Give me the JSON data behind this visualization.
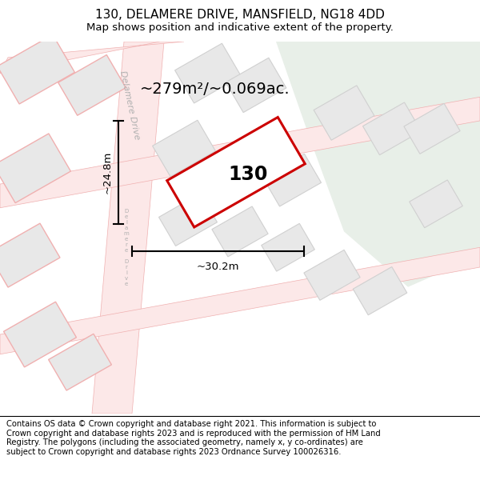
{
  "title": "130, DELAMERE DRIVE, MANSFIELD, NG18 4DD",
  "subtitle": "Map shows position and indicative extent of the property.",
  "area_text": "~279m²/~0.069ac.",
  "label_130": "130",
  "dim_width": "~30.2m",
  "dim_height": "~24.8m",
  "footer": "Contains OS data © Crown copyright and database right 2021. This information is subject to Crown copyright and database rights 2023 and is reproduced with the permission of HM Land Registry. The polygons (including the associated geometry, namely x, y co-ordinates) are subject to Crown copyright and database rights 2023 Ordnance Survey 100026316.",
  "bg_map_color": "#f7f7f7",
  "bg_green_color": "#e8efe8",
  "road_fill": "#fce8e8",
  "road_edge": "#f0b0b0",
  "building_fill": "#e8e8e8",
  "building_edge_red": "#f0b0b0",
  "building_edge_grey": "#d0d0d0",
  "highlight_fill": "#ffffff",
  "highlight_stroke": "#cc0000",
  "title_fontsize": 11,
  "subtitle_fontsize": 9.5,
  "footer_fontsize": 7.2
}
